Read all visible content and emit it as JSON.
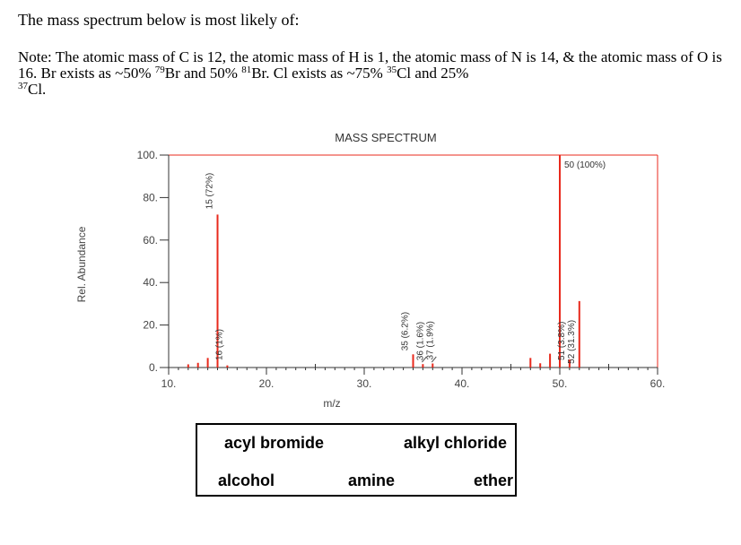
{
  "question": "The mass spectrum below is most likely of:",
  "note": {
    "text1": "Note:  The atomic mass of C is 12, the atomic mass of H is 1, the atomic mass of N is 14, & the atomic mass of O is 16.  Br exists as ~50% ",
    "br79": "79",
    "text2": "Br and 50% ",
    "br81": "81",
    "text3": "Br.  Cl exists as ~75% ",
    "cl35": "35",
    "text4": "Cl and 25% ",
    "cl37": "37",
    "text5": "Cl."
  },
  "chart_data": {
    "type": "bar",
    "title": "MASS SPECTRUM",
    "xlabel": "m/z",
    "ylabel": "Rel. Abundance",
    "xlim": [
      10,
      60
    ],
    "ylim": [
      0,
      100
    ],
    "xticks": [
      "10",
      "20",
      "30",
      "40",
      "50",
      "60"
    ],
    "yticks": [
      "0",
      "20",
      "40",
      "60",
      "80",
      "100"
    ],
    "grid": false,
    "color": "#e8291c",
    "peaks": [
      {
        "mz": 12,
        "abundance": 1.5
      },
      {
        "mz": 13,
        "abundance": 2.2
      },
      {
        "mz": 14,
        "abundance": 4.5
      },
      {
        "mz": 15,
        "abundance": 72
      },
      {
        "mz": 16,
        "abundance": 1
      },
      {
        "mz": 35,
        "abundance": 6.2
      },
      {
        "mz": 36,
        "abundance": 1.6
      },
      {
        "mz": 37,
        "abundance": 1.9
      },
      {
        "mz": 47,
        "abundance": 4.5
      },
      {
        "mz": 48,
        "abundance": 2
      },
      {
        "mz": 49,
        "abundance": 6.5
      },
      {
        "mz": 50,
        "abundance": 100
      },
      {
        "mz": 51,
        "abundance": 3.8
      },
      {
        "mz": 52,
        "abundance": 31.3
      }
    ],
    "annotations": [
      {
        "mz": 15,
        "text": "15 (72%)",
        "vertical": true
      },
      {
        "mz": 16,
        "text": "16 (1%)",
        "vertical": true
      },
      {
        "mz": 35,
        "text": "35 (6.2%)",
        "vertical": true
      },
      {
        "mz": 36,
        "text": "36 (1.6%)",
        "vertical": true
      },
      {
        "mz": 37,
        "text": "37 (1.9%)",
        "vertical": true
      },
      {
        "mz": 51,
        "text": "51 (3.8%)",
        "vertical": true
      },
      {
        "mz": 52,
        "text": "52 (31.3%)",
        "vertical": true
      },
      {
        "mz": 50,
        "text": "50 (100%)",
        "vertical": false
      }
    ]
  },
  "answers": {
    "acyl_bromide": "acyl bromide",
    "alkyl_chloride": "alkyl chloride",
    "alcohol": "alcohol",
    "amine": "amine",
    "ether": "ether"
  }
}
